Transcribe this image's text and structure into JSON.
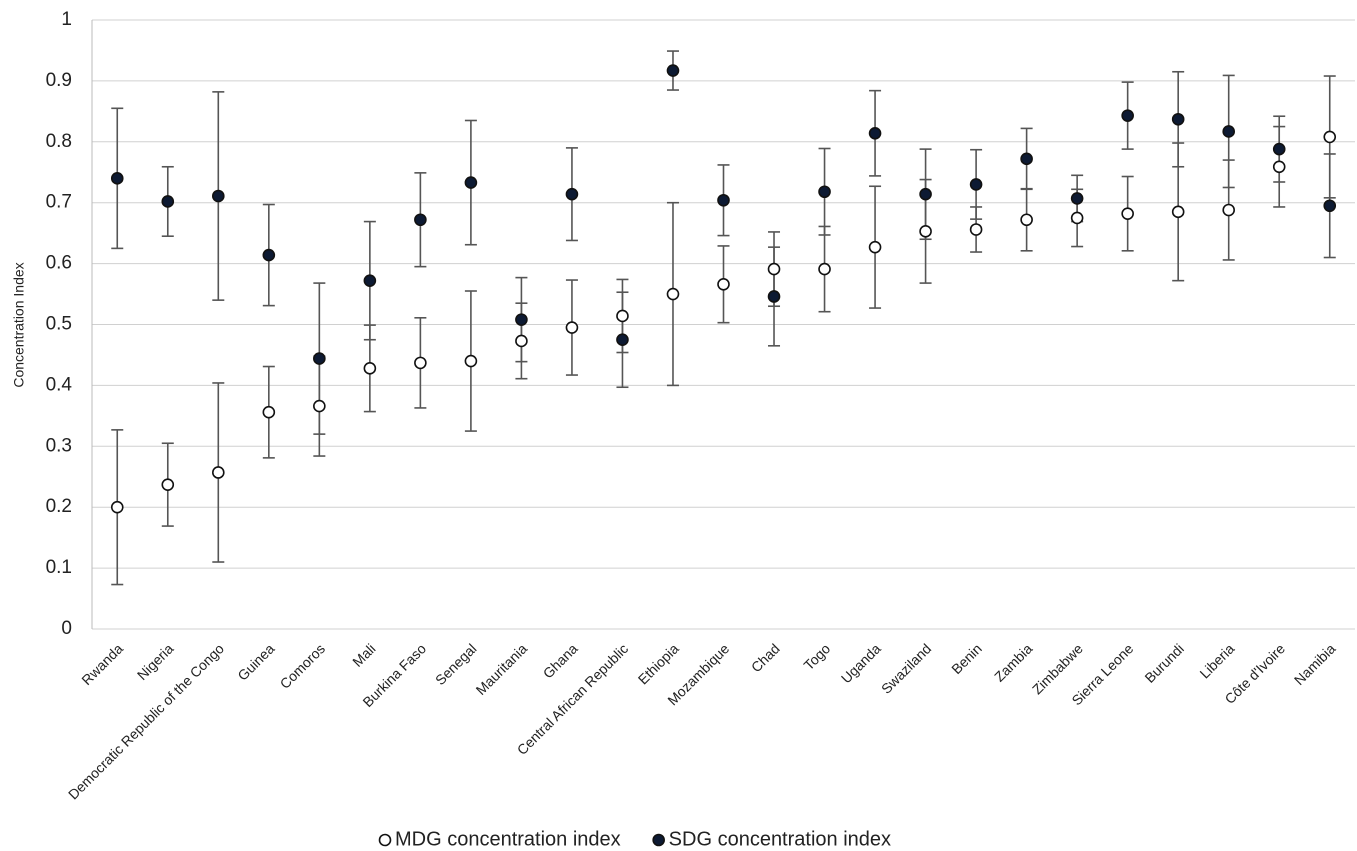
{
  "chart_data": {
    "type": "scatter",
    "y_label": "Concentration Index",
    "categories": [
      "Rwanda",
      "Nigeria",
      "Democratic Republic of the Congo",
      "Guinea",
      "Comoros",
      "Mali",
      "Burkina Faso",
      "Senegal",
      "Mauritania",
      "Ghana",
      "Central African Republic",
      "Ethiopia",
      "Mozambique",
      "Chad",
      "Togo",
      "Uganda",
      "Swaziland",
      "Benin",
      "Zambia",
      "Zimbabwe",
      "Sierra Leone",
      "Burundi",
      "Liberia",
      "Côte d'Ivoire",
      "Namibia"
    ],
    "series": [
      {
        "name": "MDG concentration index",
        "color": "#ffffff",
        "values": [
          0.2,
          0.237,
          0.257,
          0.356,
          0.366,
          0.428,
          0.437,
          0.44,
          0.473,
          0.495,
          0.514,
          0.55,
          0.566,
          0.591,
          0.591,
          0.627,
          0.653,
          0.656,
          0.672,
          0.675,
          0.682,
          0.685,
          0.688,
          0.759,
          0.808
        ],
        "errors": [
          0.127,
          0.068,
          0.147,
          0.075,
          0.082,
          0.071,
          0.074,
          0.115,
          0.062,
          0.078,
          0.06,
          0.15,
          0.063,
          0.061,
          0.07,
          0.1,
          0.085,
          0.037,
          0.051,
          0.047,
          0.061,
          0.113,
          0.082,
          0.066,
          0.1
        ]
      },
      {
        "name": "SDG concentration index",
        "color": "#0d1a33",
        "values": [
          0.74,
          0.702,
          0.711,
          0.614,
          0.444,
          0.572,
          0.672,
          0.733,
          0.508,
          0.714,
          0.475,
          0.917,
          0.704,
          0.546,
          0.718,
          0.814,
          0.714,
          0.73,
          0.772,
          0.707,
          0.843,
          0.837,
          0.817,
          0.788,
          0.695
        ],
        "errors": [
          0.115,
          0.057,
          0.171,
          0.083,
          0.124,
          0.097,
          0.077,
          0.102,
          0.069,
          0.076,
          0.078,
          0.032,
          0.058,
          0.081,
          0.071,
          0.07,
          0.074,
          0.057,
          0.05,
          0.038,
          0.055,
          0.078,
          0.092,
          0.054,
          0.085
        ]
      }
    ],
    "ylim": [
      0,
      1
    ],
    "yticks": [
      0,
      0.1,
      0.2,
      0.3,
      0.4,
      0.5,
      0.6,
      0.7,
      0.8,
      0.9,
      1
    ],
    "grid": true,
    "legend": "bottom"
  }
}
